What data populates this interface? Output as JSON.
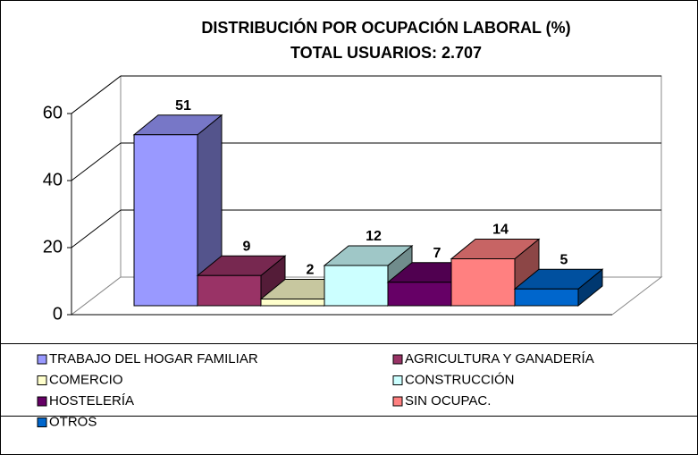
{
  "chart_data": {
    "type": "bar3d",
    "title": "DISTRIBUCIÓN POR OCUPACIÓN LABORAL (%)",
    "subtitle": "TOTAL USUARIOS: 2.707",
    "categories": [
      null
    ],
    "series": [
      {
        "name": "TRABAJO DEL HOGAR FAMILIAR",
        "color": "#9999ff",
        "values": [
          51
        ]
      },
      {
        "name": "AGRICULTURA Y GANADERÍA",
        "color": "#993366",
        "values": [
          9
        ]
      },
      {
        "name": "COMERCIO",
        "color": "#ffffcc",
        "values": [
          2
        ]
      },
      {
        "name": "CONSTRUCCIÓN",
        "color": "#ccffff",
        "values": [
          12
        ]
      },
      {
        "name": "HOSTELERÍA",
        "color": "#660066",
        "values": [
          7
        ]
      },
      {
        "name": "SIN OCUPAC.",
        "color": "#ff8080",
        "values": [
          14
        ]
      },
      {
        "name": "OTROS",
        "color": "#0066cc",
        "values": [
          5
        ]
      }
    ],
    "ylim": [
      0,
      60
    ],
    "yticks": [
      0,
      20,
      40,
      60
    ],
    "grid": true
  }
}
